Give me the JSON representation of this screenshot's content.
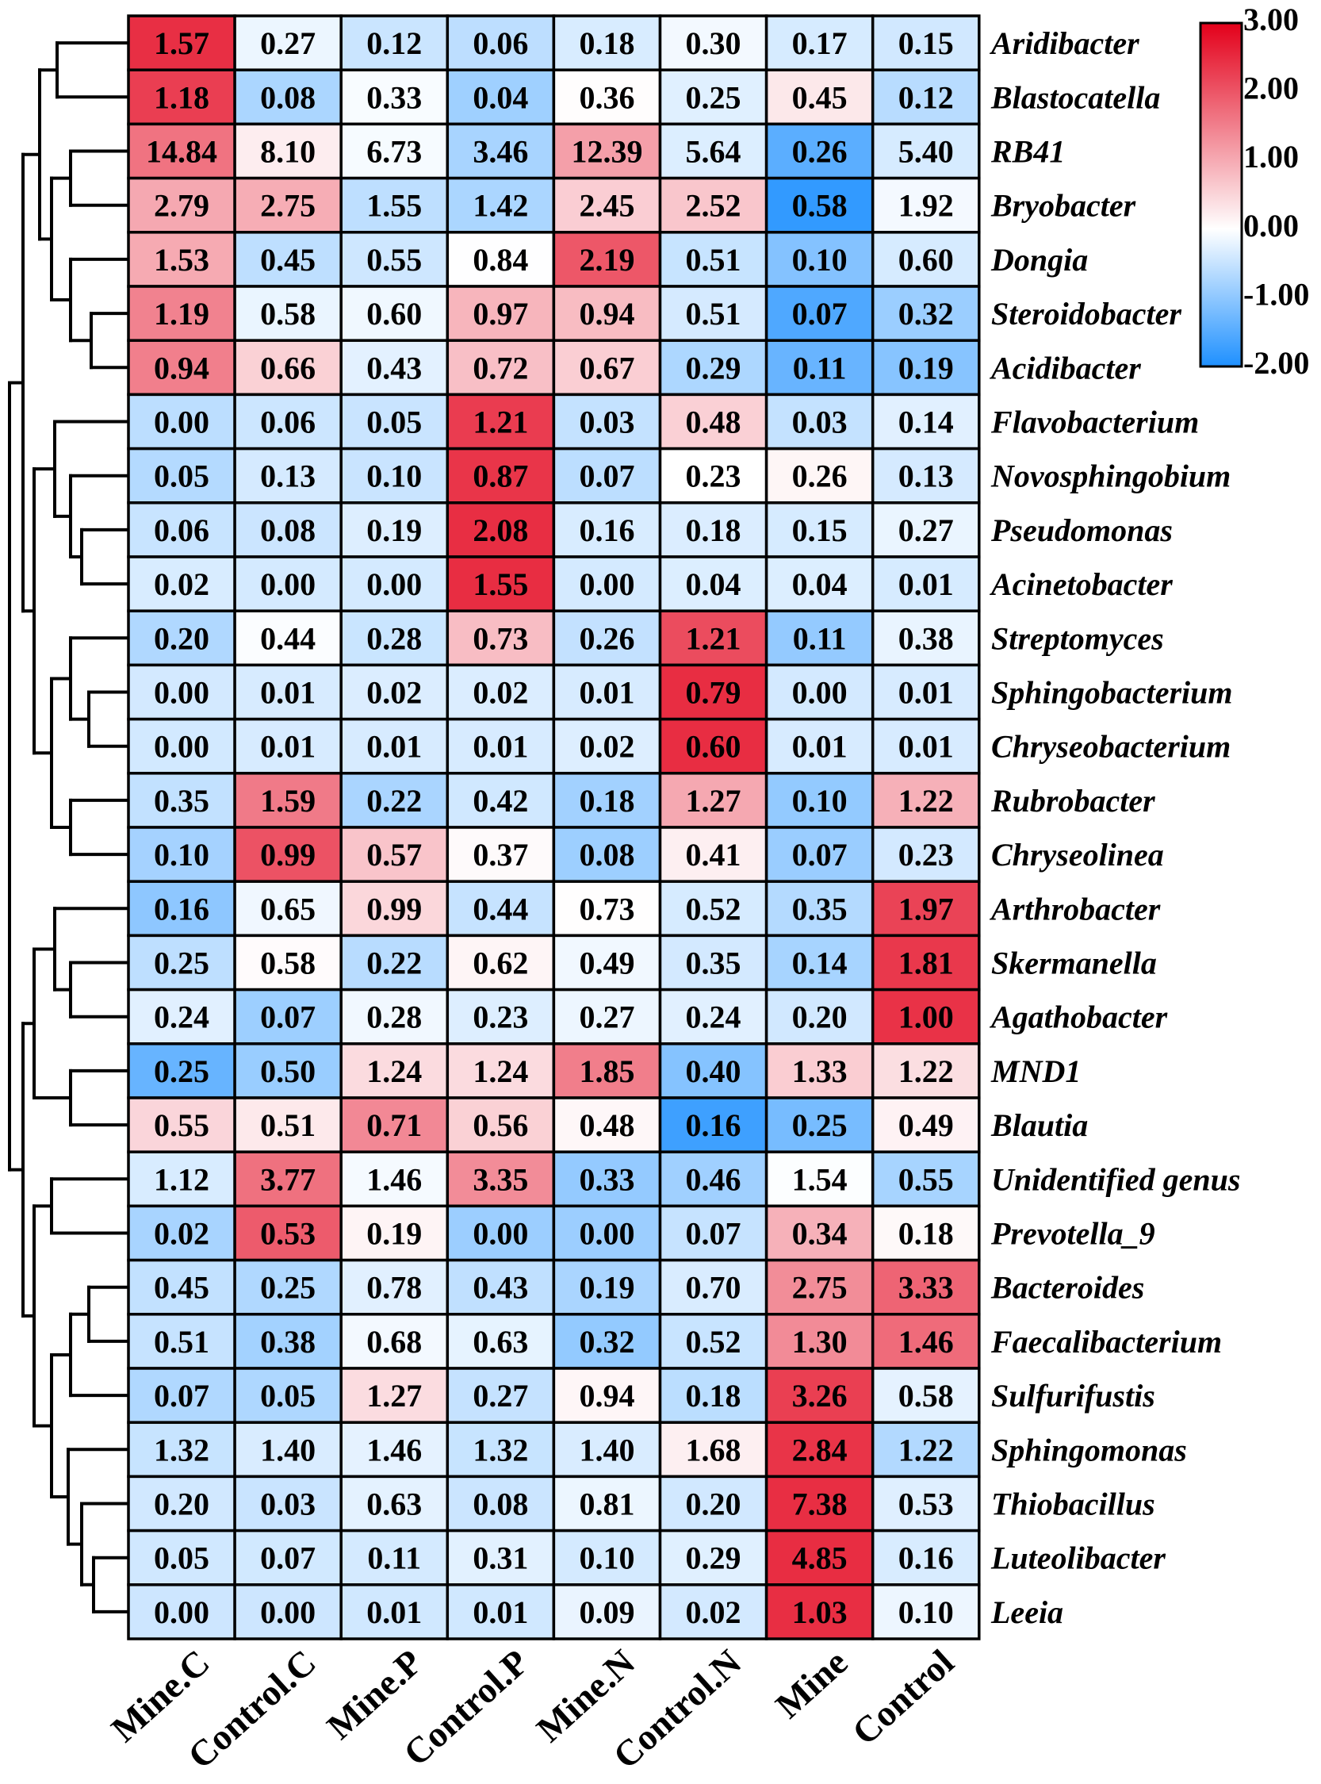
{
  "chart_data": {
    "type": "heatmap",
    "columns": [
      "Mine.C",
      "Control.C",
      "Mine.P",
      "Control.P",
      "Mine.N",
      "Control.N",
      "Mine",
      "Control"
    ],
    "rows": [
      "Aridibacter",
      "Blastocatella",
      "RB41",
      "Bryobacter",
      "Dongia",
      "Steroidobacter",
      "Acidibacter",
      "Flavobacterium",
      "Novosphingobium",
      "Pseudomonas",
      "Acinetobacter",
      "Streptomyces",
      "Sphingobacterium",
      "Chryseobacterium",
      "Rubrobacter",
      "Chryseolinea",
      "Arthrobacter",
      "Skermanella",
      "Agathobacter",
      "MND1",
      "Blautia",
      "Unidentified genus",
      "Prevotella_9",
      "Bacteroides",
      "Faecalibacterium",
      "Sulfurifustis",
      "Sphingomonas",
      "Thiobacillus",
      "Luteolibacter",
      "Leeia"
    ],
    "values": [
      [
        1.57,
        0.27,
        0.12,
        0.06,
        0.18,
        0.3,
        0.17,
        0.15
      ],
      [
        1.18,
        0.08,
        0.33,
        0.04,
        0.36,
        0.25,
        0.45,
        0.12
      ],
      [
        14.84,
        8.1,
        6.73,
        3.46,
        12.39,
        5.64,
        0.26,
        5.4
      ],
      [
        2.79,
        2.75,
        1.55,
        1.42,
        2.45,
        2.52,
        0.58,
        1.92
      ],
      [
        1.53,
        0.45,
        0.55,
        0.84,
        2.19,
        0.51,
        0.1,
        0.6
      ],
      [
        1.19,
        0.58,
        0.6,
        0.97,
        0.94,
        0.51,
        0.07,
        0.32
      ],
      [
        0.94,
        0.66,
        0.43,
        0.72,
        0.67,
        0.29,
        0.11,
        0.19
      ],
      [
        0.0,
        0.06,
        0.05,
        1.21,
        0.03,
        0.48,
        0.03,
        0.14
      ],
      [
        0.05,
        0.13,
        0.1,
        0.87,
        0.07,
        0.23,
        0.26,
        0.13
      ],
      [
        0.06,
        0.08,
        0.19,
        2.08,
        0.16,
        0.18,
        0.15,
        0.27
      ],
      [
        0.02,
        0.0,
        0.0,
        1.55,
        0.0,
        0.04,
        0.04,
        0.01
      ],
      [
        0.2,
        0.44,
        0.28,
        0.73,
        0.26,
        1.21,
        0.11,
        0.38
      ],
      [
        0.0,
        0.01,
        0.02,
        0.02,
        0.01,
        0.79,
        0.0,
        0.01
      ],
      [
        0.0,
        0.01,
        0.01,
        0.01,
        0.02,
        0.6,
        0.01,
        0.01
      ],
      [
        0.35,
        1.59,
        0.22,
        0.42,
        0.18,
        1.27,
        0.1,
        1.22
      ],
      [
        0.1,
        0.99,
        0.57,
        0.37,
        0.08,
        0.41,
        0.07,
        0.23
      ],
      [
        0.16,
        0.65,
        0.99,
        0.44,
        0.73,
        0.52,
        0.35,
        1.97
      ],
      [
        0.25,
        0.58,
        0.22,
        0.62,
        0.49,
        0.35,
        0.14,
        1.81
      ],
      [
        0.24,
        0.07,
        0.28,
        0.23,
        0.27,
        0.24,
        0.2,
        1.0
      ],
      [
        0.25,
        0.5,
        1.24,
        1.24,
        1.85,
        0.4,
        1.33,
        1.22
      ],
      [
        0.55,
        0.51,
        0.71,
        0.56,
        0.48,
        0.16,
        0.25,
        0.49
      ],
      [
        1.12,
        3.77,
        1.46,
        3.35,
        0.33,
        0.46,
        1.54,
        0.55
      ],
      [
        0.02,
        0.53,
        0.19,
        0.0,
        0.0,
        0.07,
        0.34,
        0.18
      ],
      [
        0.45,
        0.25,
        0.78,
        0.43,
        0.19,
        0.7,
        2.75,
        3.33
      ],
      [
        0.51,
        0.38,
        0.68,
        0.63,
        0.32,
        0.52,
        1.3,
        1.46
      ],
      [
        0.07,
        0.05,
        1.27,
        0.27,
        0.94,
        0.18,
        3.26,
        0.58
      ],
      [
        1.32,
        1.4,
        1.46,
        1.32,
        1.4,
        1.68,
        2.84,
        1.22
      ],
      [
        0.2,
        0.03,
        0.63,
        0.08,
        0.81,
        0.2,
        7.38,
        0.53
      ],
      [
        0.05,
        0.07,
        0.11,
        0.31,
        0.1,
        0.29,
        4.85,
        0.16
      ],
      [
        0.0,
        0.0,
        0.01,
        0.01,
        0.09,
        0.02,
        1.03,
        0.1
      ]
    ],
    "color_scale": {
      "min": -2,
      "mid": 0,
      "max": 3,
      "ticks": [
        3,
        2,
        1,
        0,
        -1,
        -2
      ],
      "low_color": "#1e90ff",
      "mid_color": "#ffffff",
      "high_color": "#e3001a"
    },
    "row_dendrogram": [
      [
        [
          [
            0,
            1
          ],
          [
            [
              2,
              3
            ],
            [
              4,
              [
                5,
                6
              ]
            ]
          ]
        ],
        [
          [
            7,
            [
              8,
              [
                9,
                10
              ]
            ]
          ],
          [
            [
              11,
              [
                12,
                13
              ]
            ],
            [
              14,
              15
            ]
          ]
        ]
      ],
      [
        [
          [
            16,
            [
              17,
              18
            ]
          ],
          [
            19,
            20
          ]
        ],
        [
          [
            21,
            22
          ],
          [
            [
              [
                23,
                24
              ],
              25
            ],
            [
              26,
              [
                27,
                [
                  28,
                  29
                ]
              ]
            ]
          ]
        ]
      ]
    ],
    "legend_position": "top-right"
  }
}
